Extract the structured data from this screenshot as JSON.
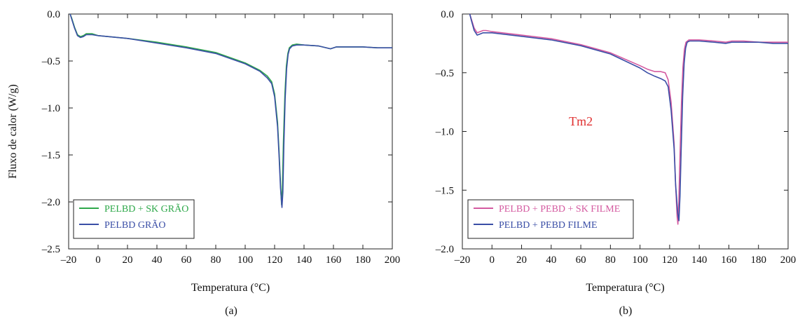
{
  "chart_data": [
    {
      "type": "line",
      "panel_label": "(a)",
      "xlabel": "Temperatura (°C)",
      "ylabel": "Fluxo de calor (W/g)",
      "xlim": [
        -20,
        200
      ],
      "ylim": [
        -2.5,
        0.0
      ],
      "xticks": [
        -20,
        0,
        20,
        40,
        60,
        80,
        100,
        120,
        140,
        160,
        180,
        200
      ],
      "yticks": [
        0.0,
        -0.5,
        -1.0,
        -1.5,
        -2.0,
        -2.5
      ],
      "ytick_labels": [
        "0.0",
        "–0.5",
        "–1.0",
        "–1.5",
        "–2.0",
        "–2.5"
      ],
      "xtick_labels": [
        "–20",
        "0",
        "20",
        "40",
        "60",
        "80",
        "100",
        "120",
        "140",
        "160",
        "180",
        "200"
      ],
      "legend_position": "bottom-left",
      "series": [
        {
          "name": "PELBD + SK GRÃO",
          "color": "#2ea84a",
          "x": [
            -19,
            -18,
            -16,
            -14,
            -12,
            -10,
            -8,
            -6,
            -4,
            0,
            20,
            40,
            60,
            80,
            100,
            110,
            115,
            118,
            120,
            122,
            123,
            124,
            124.7,
            125.3,
            126,
            127,
            128,
            129,
            130,
            132,
            135,
            140,
            150,
            158,
            162,
            170,
            180,
            190,
            200
          ],
          "y": [
            0.0,
            -0.04,
            -0.14,
            -0.22,
            -0.24,
            -0.23,
            -0.21,
            -0.21,
            -0.21,
            -0.23,
            -0.26,
            -0.3,
            -0.35,
            -0.41,
            -0.52,
            -0.6,
            -0.66,
            -0.72,
            -0.85,
            -1.15,
            -1.45,
            -1.8,
            -2.03,
            -1.85,
            -1.35,
            -0.85,
            -0.55,
            -0.42,
            -0.36,
            -0.33,
            -0.32,
            -0.33,
            -0.34,
            -0.37,
            -0.35,
            -0.35,
            -0.35,
            -0.36,
            -0.36
          ]
        },
        {
          "name": "PELBD GRÃO",
          "color": "#3a4ea6",
          "x": [
            -19,
            -18,
            -16,
            -14,
            -12,
            -10,
            -8,
            -6,
            -4,
            0,
            20,
            40,
            60,
            80,
            100,
            110,
            115,
            118,
            120,
            122,
            123,
            124,
            125,
            125.6,
            126.3,
            127.2,
            128.2,
            129.2,
            130.2,
            132,
            135,
            140,
            150,
            158,
            162,
            170,
            180,
            190,
            200
          ],
          "y": [
            0.0,
            -0.05,
            -0.15,
            -0.23,
            -0.25,
            -0.24,
            -0.22,
            -0.22,
            -0.22,
            -0.23,
            -0.26,
            -0.31,
            -0.36,
            -0.42,
            -0.53,
            -0.61,
            -0.68,
            -0.74,
            -0.88,
            -1.2,
            -1.5,
            -1.85,
            -2.06,
            -1.9,
            -1.4,
            -0.9,
            -0.58,
            -0.43,
            -0.37,
            -0.34,
            -0.33,
            -0.33,
            -0.34,
            -0.37,
            -0.35,
            -0.35,
            -0.35,
            -0.36,
            -0.36
          ]
        }
      ]
    },
    {
      "type": "line",
      "panel_label": "(b)",
      "xlabel": "Temperatura (°C)",
      "xlim": [
        -20,
        200
      ],
      "ylim": [
        -2.0,
        0.0
      ],
      "xticks": [
        -20,
        0,
        20,
        40,
        60,
        80,
        100,
        120,
        140,
        160,
        180,
        200
      ],
      "yticks": [
        0.0,
        -0.5,
        -1.0,
        -1.5,
        -2.0
      ],
      "ytick_labels": [
        "0.0",
        "–0.5",
        "–1.0",
        "–1.5",
        "–2.0"
      ],
      "xtick_labels": [
        "–20",
        "0",
        "20",
        "40",
        "60",
        "80",
        "100",
        "120",
        "140",
        "160",
        "180",
        "200"
      ],
      "legend_position": "bottom-left",
      "annotation": {
        "text": "Tm2",
        "x": 60,
        "y": -0.95,
        "color": "#e03030"
      },
      "series": [
        {
          "name": "PELBD + PEBD + SK FILME",
          "color": "#d45aa0",
          "x": [
            -15,
            -14,
            -12,
            -10,
            -8,
            -6,
            -4,
            0,
            20,
            40,
            60,
            80,
            100,
            105,
            110,
            114,
            117,
            119,
            121,
            123,
            124,
            125,
            125.6,
            126.2,
            127,
            128,
            129,
            130,
            131,
            133,
            136,
            140,
            150,
            158,
            162,
            170,
            180,
            190,
            200
          ],
          "y": [
            0.0,
            -0.04,
            -0.12,
            -0.16,
            -0.15,
            -0.14,
            -0.14,
            -0.15,
            -0.18,
            -0.21,
            -0.26,
            -0.33,
            -0.44,
            -0.47,
            -0.49,
            -0.49,
            -0.5,
            -0.56,
            -0.75,
            -1.1,
            -1.45,
            -1.72,
            -1.79,
            -1.6,
            -1.2,
            -0.75,
            -0.45,
            -0.3,
            -0.24,
            -0.22,
            -0.22,
            -0.22,
            -0.23,
            -0.24,
            -0.23,
            -0.23,
            -0.24,
            -0.24,
            -0.24
          ]
        },
        {
          "name": "PELBD + PEBD FILME",
          "color": "#3a4ea6",
          "x": [
            -15,
            -14,
            -12,
            -10,
            -8,
            -6,
            -4,
            0,
            20,
            40,
            60,
            80,
            100,
            105,
            110,
            114,
            117,
            119,
            121,
            123,
            124,
            125.5,
            126.3,
            127,
            127.8,
            128.8,
            129.8,
            130.8,
            131.8,
            133.5,
            136,
            140,
            150,
            158,
            162,
            170,
            180,
            190,
            200
          ],
          "y": [
            0.0,
            -0.05,
            -0.14,
            -0.18,
            -0.17,
            -0.16,
            -0.16,
            -0.16,
            -0.19,
            -0.22,
            -0.27,
            -0.34,
            -0.46,
            -0.5,
            -0.53,
            -0.55,
            -0.57,
            -0.62,
            -0.82,
            -1.15,
            -1.45,
            -1.7,
            -1.76,
            -1.55,
            -1.15,
            -0.7,
            -0.42,
            -0.29,
            -0.24,
            -0.23,
            -0.23,
            -0.23,
            -0.24,
            -0.25,
            -0.24,
            -0.24,
            -0.24,
            -0.25,
            -0.25
          ]
        }
      ]
    }
  ]
}
